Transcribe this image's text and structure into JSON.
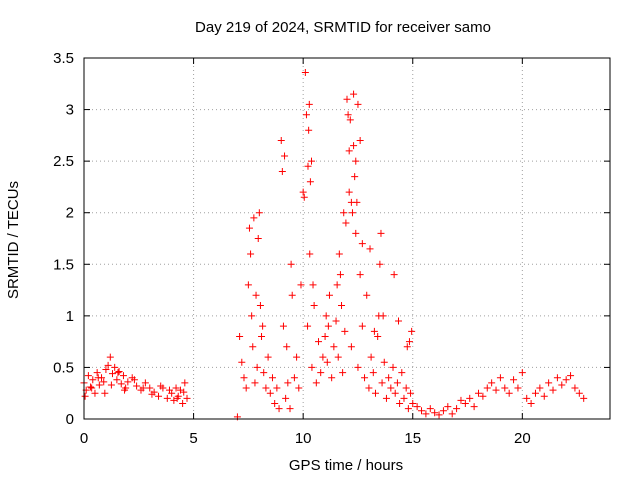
{
  "chart_data": {
    "type": "scatter",
    "title": "Day 219 of 2024, SRMTID for receiver samo",
    "xlabel": "GPS time / hours",
    "ylabel": "SRMTID / TECUs",
    "xlim": [
      0,
      24
    ],
    "ylim": [
      0,
      3.5
    ],
    "xticks": [
      0,
      5,
      10,
      15,
      20
    ],
    "yticks": [
      0,
      0.5,
      1,
      1.5,
      2,
      2.5,
      3,
      3.5
    ],
    "xtick_labels": [
      "0",
      "5",
      "10",
      "15",
      "20"
    ],
    "ytick_labels": [
      "0",
      "0.5",
      "1",
      "1.5",
      "2",
      "2.5",
      "3",
      "3.5"
    ],
    "grid": true,
    "marker": "+",
    "color": "#ff0000",
    "series": [
      {
        "name": "SRMTID",
        "x": [
          0.0,
          0.1,
          0.2,
          0.3,
          0.4,
          0.5,
          0.6,
          0.7,
          0.8,
          0.9,
          1.0,
          1.1,
          1.2,
          1.3,
          1.4,
          1.5,
          1.6,
          1.7,
          1.8,
          1.9,
          2.0,
          2.2,
          2.4,
          2.6,
          2.8,
          3.0,
          3.2,
          3.4,
          3.6,
          3.8,
          4.0,
          4.1,
          4.2,
          4.3,
          4.4,
          4.5,
          4.6,
          4.7,
          7.0,
          7.1,
          7.2,
          7.3,
          7.4,
          7.5,
          7.6,
          7.7,
          7.8,
          7.9,
          8.0,
          8.1,
          8.2,
          8.3,
          8.4,
          8.5,
          8.6,
          8.7,
          8.8,
          8.9,
          9.0,
          9.1,
          9.2,
          9.3,
          9.4,
          9.5,
          9.6,
          9.7,
          9.8,
          9.9,
          10.0,
          10.1,
          10.2,
          10.25,
          10.3,
          10.4,
          10.5,
          10.6,
          10.7,
          10.8,
          10.9,
          11.0,
          11.1,
          11.2,
          11.3,
          11.4,
          11.5,
          11.6,
          11.7,
          11.8,
          11.9,
          12.0,
          12.1,
          12.2,
          12.3,
          12.4,
          12.5,
          12.6,
          12.7,
          12.8,
          12.9,
          13.0,
          13.1,
          13.2,
          13.3,
          13.4,
          13.5,
          13.6,
          13.7,
          13.8,
          13.9,
          14.0,
          14.1,
          14.2,
          14.3,
          14.4,
          14.5,
          14.6,
          14.7,
          14.8,
          14.9,
          15.0,
          15.2,
          15.4,
          15.6,
          15.8,
          16.0,
          16.2,
          16.4,
          16.6,
          16.8,
          17.0,
          17.2,
          17.4,
          17.6,
          17.8,
          18.0,
          18.2,
          18.4,
          18.6,
          18.8,
          19.0,
          19.2,
          19.4,
          19.6,
          19.8,
          20.0,
          20.2,
          20.4,
          20.6,
          20.8,
          21.0,
          21.2,
          21.4,
          21.6,
          21.8,
          22.0,
          22.2,
          22.4,
          22.6,
          22.8,
          0.05,
          0.35,
          0.65,
          0.95,
          1.25,
          1.55,
          1.85,
          2.3,
          2.7,
          3.1,
          3.5,
          3.9,
          4.25,
          4.55,
          7.55,
          7.65,
          7.75,
          7.85,
          7.95,
          8.05,
          8.15,
          9.05,
          9.15,
          9.25,
          9.45,
          10.05,
          10.15,
          10.22,
          10.28,
          10.33,
          10.38,
          10.45,
          11.05,
          11.15,
          11.55,
          11.65,
          11.75,
          11.85,
          11.95,
          12.05,
          12.1,
          12.15,
          12.2,
          12.25,
          12.3,
          12.35,
          12.4,
          12.45,
          12.5,
          12.6,
          12.7,
          13.05,
          13.25,
          13.45,
          13.55,
          13.65,
          14.15,
          14.35,
          14.75,
          14.85,
          14.95
        ],
        "y": [
          0.35,
          0.28,
          0.42,
          0.31,
          0.38,
          0.25,
          0.45,
          0.33,
          0.4,
          0.36,
          0.48,
          0.52,
          0.6,
          0.44,
          0.5,
          0.38,
          0.46,
          0.34,
          0.42,
          0.3,
          0.36,
          0.4,
          0.32,
          0.28,
          0.35,
          0.3,
          0.26,
          0.22,
          0.3,
          0.2,
          0.25,
          0.18,
          0.3,
          0.22,
          0.28,
          0.15,
          0.35,
          0.2,
          0.02,
          0.8,
          0.55,
          0.4,
          0.3,
          1.3,
          1.6,
          0.7,
          0.35,
          0.5,
          2.0,
          0.8,
          0.45,
          0.3,
          0.6,
          0.25,
          0.4,
          0.15,
          0.3,
          0.1,
          2.7,
          0.9,
          0.2,
          0.35,
          0.1,
          1.2,
          0.4,
          0.6,
          0.3,
          1.3,
          2.2,
          3.36,
          0.9,
          2.8,
          1.6,
          0.5,
          1.1,
          0.35,
          0.75,
          0.45,
          0.6,
          0.8,
          0.55,
          1.2,
          0.4,
          0.7,
          0.95,
          0.6,
          1.4,
          0.45,
          0.85,
          3.1,
          2.6,
          0.7,
          3.15,
          1.8,
          0.5,
          1.4,
          0.9,
          0.4,
          1.2,
          0.3,
          0.6,
          0.45,
          0.25,
          0.8,
          1.5,
          0.35,
          0.55,
          0.2,
          0.4,
          0.3,
          0.5,
          0.25,
          0.35,
          0.15,
          0.45,
          0.2,
          0.3,
          0.1,
          0.25,
          0.15,
          0.12,
          0.08,
          0.05,
          0.1,
          0.06,
          0.04,
          0.08,
          0.12,
          0.05,
          0.1,
          0.18,
          0.15,
          0.2,
          0.12,
          0.25,
          0.22,
          0.3,
          0.35,
          0.28,
          0.4,
          0.3,
          0.25,
          0.38,
          0.3,
          0.45,
          0.2,
          0.15,
          0.25,
          0.3,
          0.22,
          0.35,
          0.28,
          0.4,
          0.33,
          0.38,
          0.42,
          0.3,
          0.25,
          0.2,
          0.22,
          0.3,
          0.4,
          0.25,
          0.33,
          0.45,
          0.28,
          0.38,
          0.3,
          0.24,
          0.32,
          0.28,
          0.2,
          0.26,
          1.85,
          1.0,
          1.95,
          1.2,
          1.75,
          1.1,
          0.9,
          2.4,
          2.55,
          0.7,
          1.5,
          2.15,
          2.95,
          2.45,
          3.05,
          2.3,
          2.5,
          1.3,
          1.0,
          0.9,
          1.3,
          1.6,
          1.1,
          2.0,
          1.9,
          2.95,
          2.2,
          2.9,
          2.1,
          2.0,
          2.65,
          2.35,
          2.5,
          2.1,
          3.05,
          2.7,
          1.7,
          1.65,
          0.85,
          1.0,
          1.8,
          1.0,
          1.4,
          0.95,
          0.7,
          0.75,
          0.85
        ]
      }
    ]
  }
}
